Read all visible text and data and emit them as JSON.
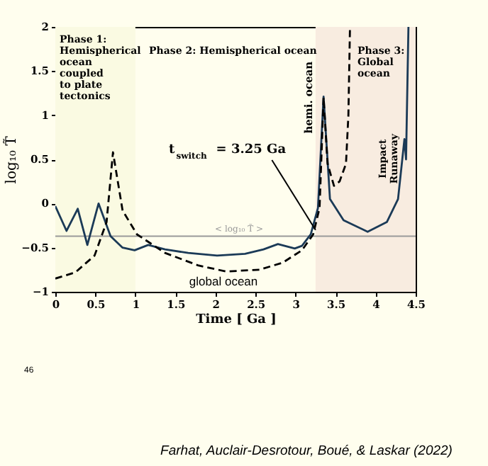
{
  "chart_data": {
    "type": "line",
    "xlabel": "Time [ Ga ]",
    "ylabel": "log₁₀ T̃",
    "xlim": [
      0,
      4.5
    ],
    "xticks": [
      0,
      0.5,
      1,
      1.5,
      2,
      2.5,
      3,
      3.5,
      4,
      4.5
    ],
    "ylim": [
      -1,
      2
    ],
    "yticks": [
      -1,
      -0.5,
      0,
      0.5,
      1,
      1.5,
      2
    ],
    "grid": false,
    "series": [
      {
        "color": "#1b3a57",
        "line_style": "solid",
        "x": [
          0,
          0.14,
          0.28,
          0.4,
          0.54,
          0.69,
          0.84,
          0.99,
          1.16,
          1.37,
          1.66,
          2.02,
          2.37,
          2.6,
          2.78,
          2.99,
          3.08,
          3.19,
          3.28,
          3.35,
          3.43,
          3.6,
          3.9,
          4.14,
          4.28,
          4.36,
          4.38,
          4.41
        ],
        "values": [
          -0.03,
          -0.31,
          -0.06,
          -0.47,
          0.0,
          -0.37,
          -0.5,
          -0.53,
          -0.47,
          -0.52,
          -0.56,
          -0.59,
          -0.57,
          -0.52,
          -0.46,
          -0.51,
          -0.48,
          -0.35,
          -0.05,
          1.21,
          0.05,
          -0.19,
          -0.32,
          -0.21,
          0.05,
          0.73,
          0.5,
          2.0
        ]
      },
      {
        "color": "#000000",
        "line_style": "dashed",
        "x": [
          0,
          0.25,
          0.49,
          0.64,
          0.72,
          0.84,
          1.02,
          1.37,
          1.78,
          2.13,
          2.55,
          2.84,
          3.08,
          3.22,
          3.3,
          3.35,
          3.4,
          3.48,
          3.55,
          3.63,
          3.66,
          3.68
        ],
        "values": [
          -0.85,
          -0.78,
          -0.59,
          -0.21,
          0.58,
          -0.08,
          -0.35,
          -0.56,
          -0.7,
          -0.77,
          -0.75,
          -0.67,
          -0.53,
          -0.35,
          -0.05,
          1.2,
          0.45,
          0.2,
          0.25,
          0.45,
          1.0,
          2.0
        ]
      }
    ],
    "ref_lines": [
      {
        "axis": "y",
        "value": -0.37,
        "label": "< log₁₀ T̃ >",
        "color": "#999999"
      }
    ],
    "bands": [
      {
        "axis": "x",
        "from": 0,
        "to": 1,
        "color": "#fafae2"
      },
      {
        "axis": "x",
        "from": 3.25,
        "to": 4.5,
        "color": "#f8ece0"
      }
    ],
    "annotations": [
      "Phase 1:\nHemispherical\nocean\ncoupled\nto plate\ntectonics",
      "Phase 2: Hemispherical ocean",
      "Phase 3:\nGlobal\nocean",
      {
        "text": "hemi. ocean",
        "x": 3.35,
        "y": 1.2
      },
      {
        "text": "Impact\nRunaway",
        "x": 4.36,
        "y": 0.73
      },
      {
        "text": "t$_{switch}$ = 3.25 Ga",
        "x": 3.25,
        "y": -0.3
      },
      {
        "text": "global ocean",
        "x": 2.1,
        "y": -0.77
      },
      "46",
      "Farhat, Auclair-Desrotour, Boué, & Laskar (2022)"
    ]
  }
}
